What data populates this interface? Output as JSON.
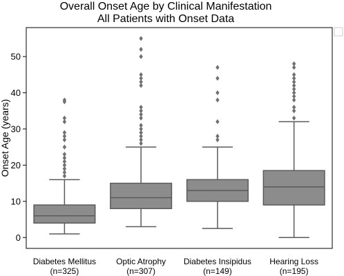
{
  "chart_data": {
    "type": "box",
    "title": "Overall Onset Age by Clinical Manifestation",
    "subtitle": "All Patients with Onset Data",
    "xlabel": "",
    "ylabel": "Onset Age (years)",
    "ylim": [
      -3,
      58
    ],
    "yticks": [
      0,
      10,
      20,
      30,
      40,
      50
    ],
    "grid": false,
    "legend": "none",
    "colors": {
      "box": "#8c8c8c",
      "line": "#5a5a5a",
      "outlier": "#707070"
    },
    "categories": [
      {
        "name": "Diabetes Mellitus",
        "n": "(n=325)"
      },
      {
        "name": "Optic Atrophy",
        "n": "(n=307)"
      },
      {
        "name": "Diabetes Insipidus",
        "n": "(n=149)"
      },
      {
        "name": "Hearing Loss",
        "n": "(n=195)"
      }
    ],
    "boxes": [
      {
        "min": 1,
        "q1": 4,
        "median": 6,
        "q3": 9,
        "max": 16,
        "outliers": [
          17,
          18,
          19,
          20,
          21,
          22,
          23,
          25,
          27,
          28,
          29,
          32,
          33,
          37.5,
          38
        ]
      },
      {
        "min": 3,
        "q1": 8,
        "median": 11,
        "q3": 15,
        "max": 25,
        "outliers": [
          26,
          27,
          28,
          29,
          30,
          31,
          33,
          34,
          35,
          36,
          42,
          43,
          44,
          45,
          50,
          52,
          55
        ]
      },
      {
        "min": 2.5,
        "q1": 10,
        "median": 13,
        "q3": 16,
        "max": 25,
        "outliers": [
          27,
          28,
          32,
          38,
          40,
          44,
          47
        ]
      },
      {
        "min": 0,
        "q1": 9,
        "median": 14,
        "q3": 18.5,
        "max": 32,
        "outliers": [
          33,
          35,
          36,
          38,
          39,
          40,
          41,
          42,
          43,
          44,
          45,
          47,
          48
        ]
      }
    ]
  }
}
